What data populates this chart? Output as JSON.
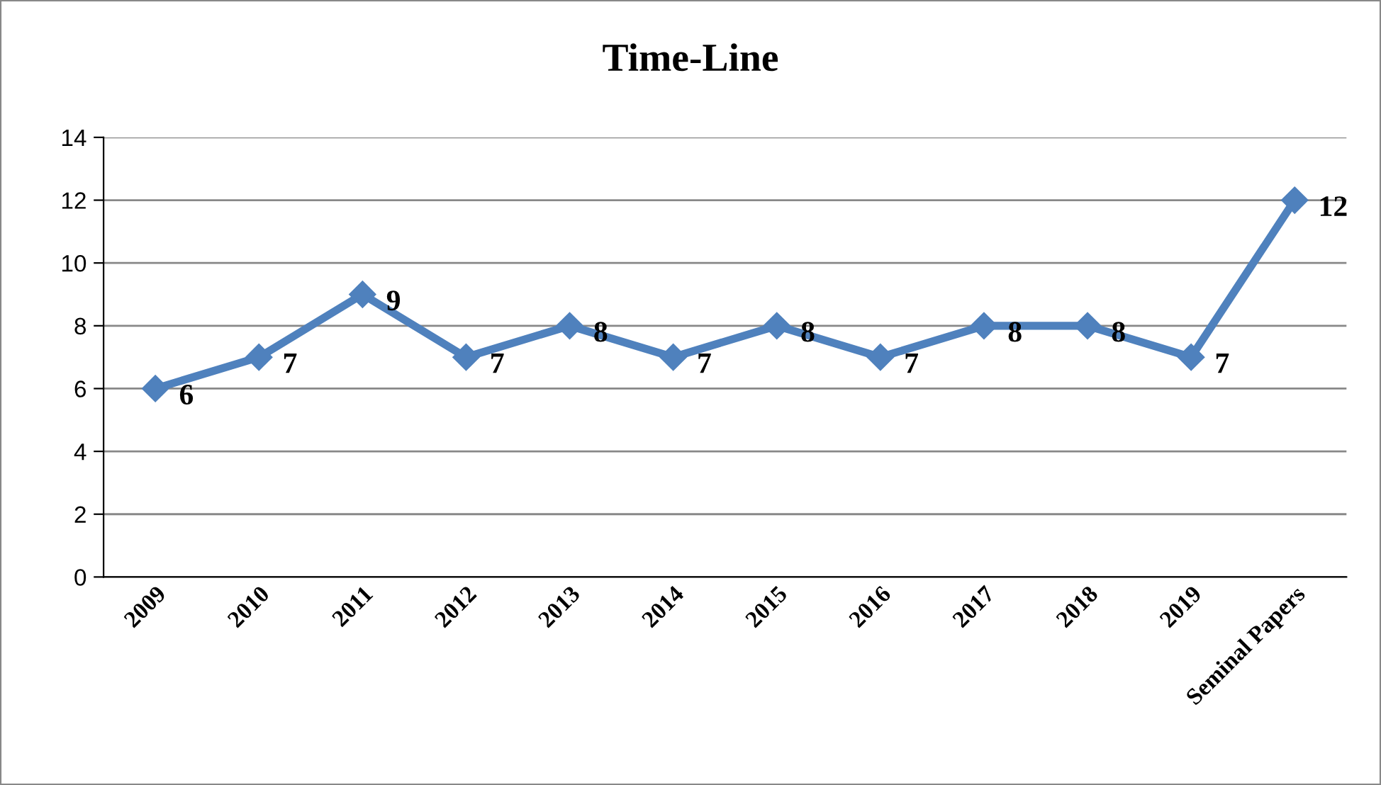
{
  "chart_data": {
    "type": "line",
    "title": "Time-Line",
    "categories": [
      "2009",
      "2010",
      "2011",
      "2012",
      "2013",
      "2014",
      "2015",
      "2016",
      "2017",
      "2018",
      "2019",
      "Seminal Papers"
    ],
    "series": [
      {
        "color": "#4f81bd",
        "values": [
          6,
          7,
          9,
          7,
          8,
          7,
          8,
          7,
          8,
          8,
          7,
          12
        ]
      }
    ],
    "ylim": [
      0,
      14
    ],
    "yticks": [
      0,
      2,
      4,
      6,
      8,
      10,
      12,
      14
    ],
    "grid": "y",
    "marker": "diamond",
    "line_style": "solid",
    "data_labels": true,
    "legend": false
  }
}
